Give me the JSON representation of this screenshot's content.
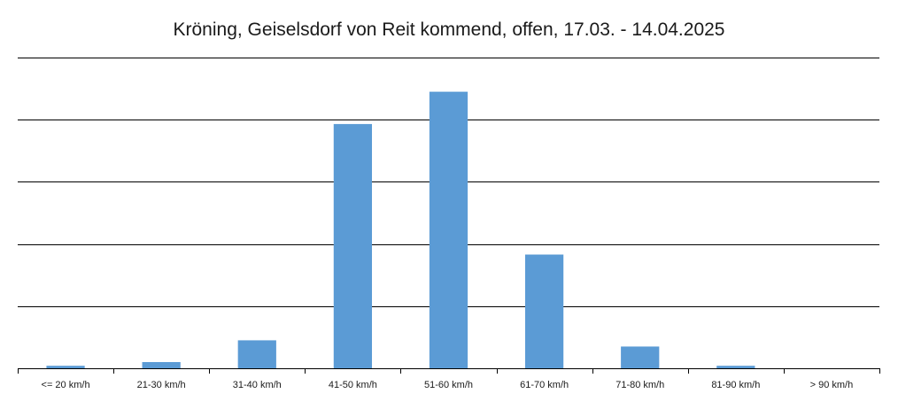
{
  "chart_data": {
    "type": "bar",
    "title": "Kröning, Geiselsdorf von Reit kommend, offen, 17.03. - 14.04.2025",
    "xlabel": "",
    "ylabel": "",
    "categories": [
      "<= 20 km/h",
      "21-30 km/h",
      "31-40 km/h",
      "41-50 km/h",
      "51-60 km/h",
      "61-70 km/h",
      "71-80 km/h",
      "81-90 km/h",
      "> 90 km/h"
    ],
    "values": [
      0.4,
      1.0,
      4.5,
      39.3,
      44.5,
      18.3,
      3.5,
      0.4,
      0
    ],
    "ylim": [
      0,
      50
    ],
    "y_gridlines": [
      10,
      20,
      30,
      40,
      50
    ],
    "y_tick_labels_visible": false,
    "grid": true,
    "legend": "none",
    "bar_color": "#5b9bd5"
  }
}
